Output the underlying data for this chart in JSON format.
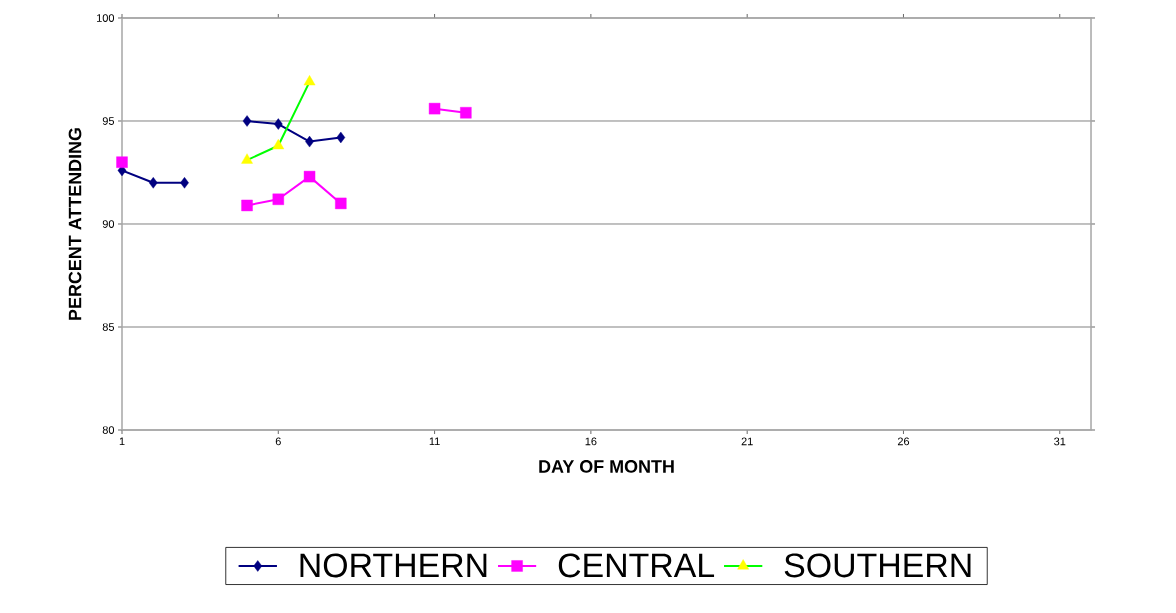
{
  "chart_data": {
    "type": "line",
    "xlabel": "DAY OF MONTH",
    "ylabel": "PERCENT ATTENDING",
    "x": [
      1,
      2,
      3,
      4,
      5,
      6,
      7,
      8,
      9,
      10,
      11,
      12
    ],
    "series": [
      {
        "name": "NORTHERN",
        "color": "#000080",
        "marker": "diamond",
        "values": [
          92.6,
          92.0,
          92.0,
          null,
          95.0,
          94.85,
          94.0,
          94.2,
          null,
          null,
          null,
          null
        ]
      },
      {
        "name": "CENTRAL",
        "color": "#ff00ff",
        "marker": "square",
        "values": [
          93.0,
          null,
          null,
          null,
          90.9,
          91.2,
          92.3,
          91.0,
          null,
          null,
          95.6,
          95.4
        ]
      },
      {
        "name": "SOUTHERN",
        "color": "#00ff00",
        "colors": [
          "#ffff00",
          "#ffff00",
          "#ffff00",
          "#ffff00",
          "#ffff00",
          "#ffff00",
          "#ffff00",
          "#ffff00",
          "#ffff00",
          "#ffff00",
          "#ffff00",
          "#ffff00"
        ],
        "marker": "triangle",
        "values": [
          null,
          null,
          null,
          null,
          93.1,
          93.8,
          96.9,
          null,
          null,
          null,
          null,
          null
        ]
      }
    ],
    "xlim": [
      1,
      32
    ],
    "xticks": [
      1,
      6,
      11,
      16,
      21,
      26,
      31
    ],
    "ylim": [
      80,
      100
    ],
    "yticks": [
      80,
      85,
      90,
      95,
      100
    ],
    "grid": "y",
    "legend": "bottom"
  }
}
